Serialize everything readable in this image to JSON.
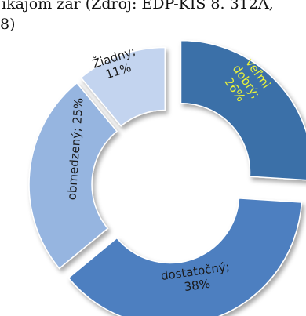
{
  "caption": {
    "line1": "ikajom zár (Zdroj: EDP-KIS 8. 312A,",
    "line2": "8)"
  },
  "chart_data": {
    "type": "pie",
    "variant": "doughnut-exploded",
    "title": "",
    "slices": [
      {
        "label": "veľmi dobrý;",
        "percent_text": "26%",
        "value": 26,
        "color": "#3b6fa8",
        "text_color": "#e9f23a"
      },
      {
        "label": "dostatočný;",
        "percent_text": "38%",
        "value": 38,
        "color": "#4d7fc0",
        "text_color": "#1a1a1a"
      },
      {
        "label": "obmedzený;",
        "percent_text": "25%",
        "value": 25,
        "color": "#96b5e0",
        "text_color": "#1a1a1a"
      },
      {
        "label": "Žiadny;",
        "percent_text": "11%",
        "value": 11,
        "color": "#c3d4ef",
        "text_color": "#1a1a1a"
      }
    ],
    "legend": "none"
  }
}
